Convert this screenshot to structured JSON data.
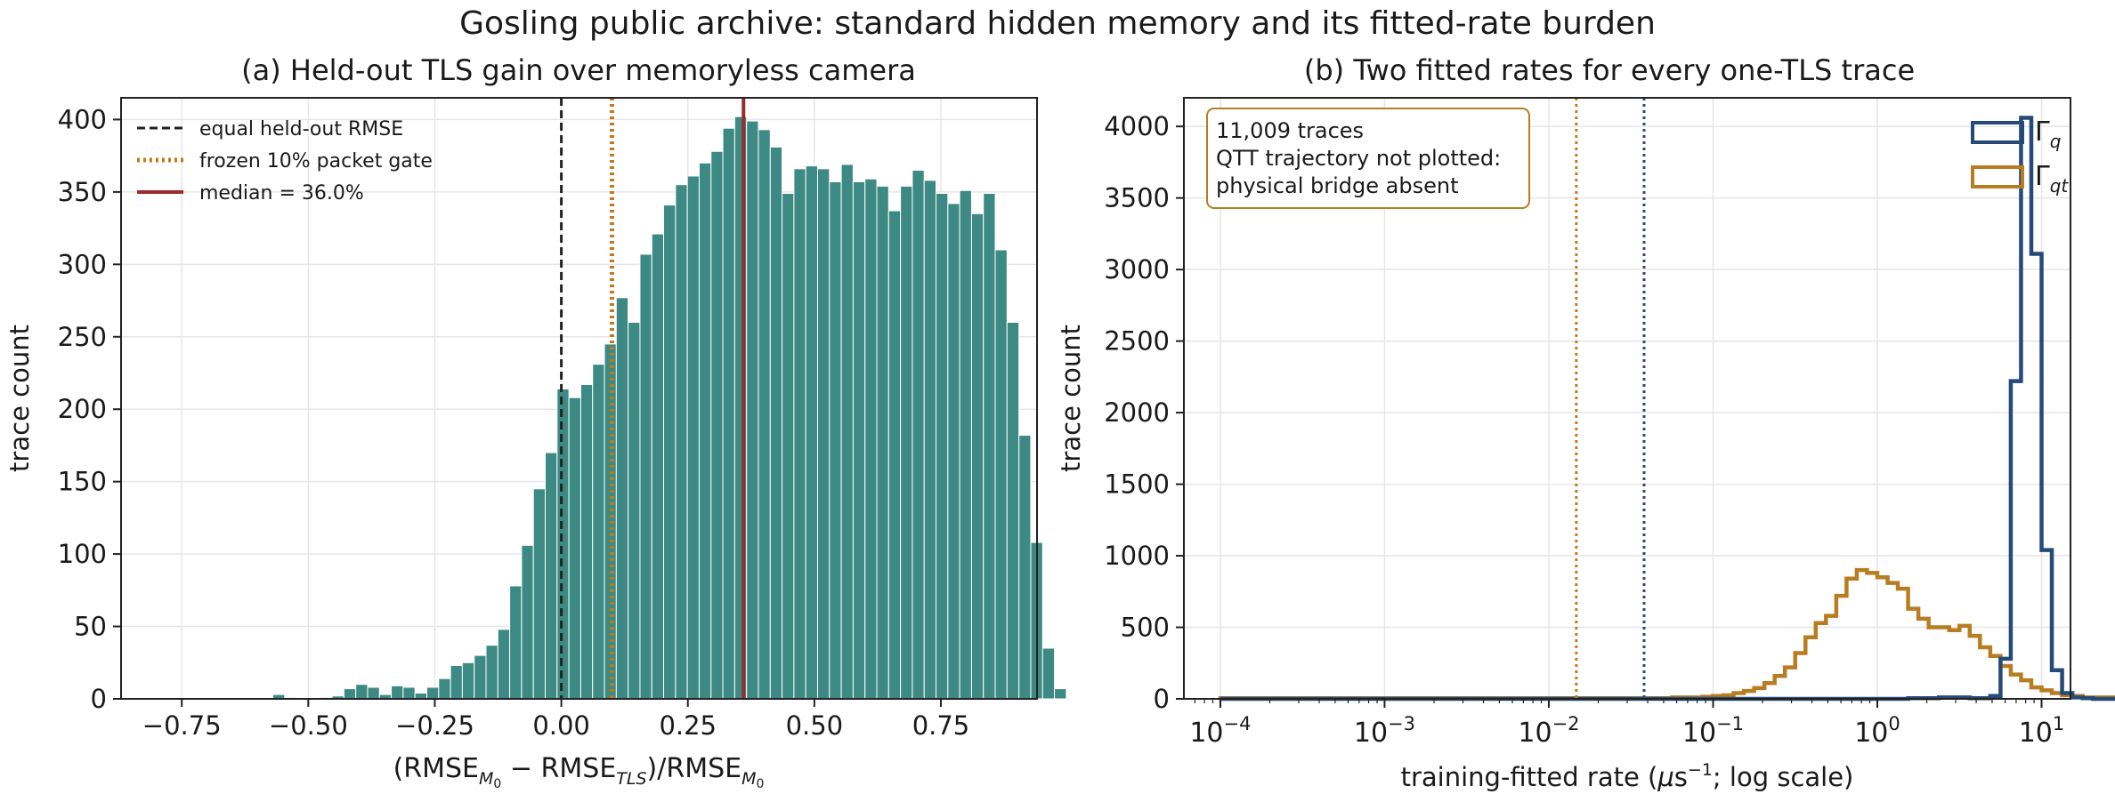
{
  "figure": {
    "suptitle": "Gosling public archive: standard hidden memory and its fitted-rate burden"
  },
  "colors": {
    "hist_fill": "#3d8a84",
    "hist_edge": "#ffffff",
    "equal_line": "#222222",
    "gate_line": "#c07a1c",
    "median_line": "#9e2a2b",
    "gamma_q": "#264a78",
    "gamma_qt": "#b87d22",
    "grid": "#e6e6e6"
  },
  "chart_data": [
    {
      "type": "bar",
      "title": "(a) Held-out TLS gain over memoryless camera",
      "xlabel": "(RMSE_M0 − RMSE_TLS)/RMSE_M0",
      "xlabel_parts": {
        "open": "(RMSE",
        "sub1": "M",
        "sub1b": "0",
        "minus": " − RMSE",
        "sub2": "TLS",
        "close": ")/RMSE",
        "sub3": "M",
        "sub3b": "0"
      },
      "ylabel": "trace count",
      "xlim": [
        -0.87,
        0.94
      ],
      "ylim": [
        0,
        415
      ],
      "xticks": [
        -0.75,
        -0.5,
        -0.25,
        0.0,
        0.25,
        0.5,
        0.75
      ],
      "xtick_labels": [
        "−0.75",
        "−0.50",
        "−0.25",
        "0.00",
        "0.25",
        "0.50",
        "0.75"
      ],
      "yticks": [
        0,
        50,
        100,
        150,
        200,
        250,
        300,
        350,
        400
      ],
      "ytick_labels": [
        "0",
        "50",
        "100",
        "150",
        "200",
        "250",
        "300",
        "350",
        "400"
      ],
      "grid": true,
      "legend_position": "top-left",
      "bin_start": -0.57,
      "bin_width": 0.0234,
      "values": [
        3,
        1,
        0,
        0,
        1,
        2,
        7,
        10,
        8,
        3,
        9,
        8,
        4,
        8,
        14,
        23,
        25,
        30,
        37,
        48,
        78,
        106,
        145,
        170,
        214,
        208,
        217,
        231,
        245,
        277,
        260,
        307,
        321,
        341,
        355,
        361,
        370,
        378,
        394,
        402,
        399,
        393,
        381,
        349,
        366,
        368,
        366,
        357,
        369,
        357,
        359,
        354,
        337,
        354,
        365,
        358,
        349,
        342,
        351,
        335,
        349,
        310,
        260,
        182,
        108,
        35,
        7
      ],
      "reference_lines": [
        {
          "name": "equal held-out RMSE",
          "x": 0.0,
          "style": "dashed"
        },
        {
          "name": "frozen 10% packet gate",
          "x": 0.1,
          "style": "dotted"
        },
        {
          "name": "median = 36.0%",
          "x": 0.36,
          "style": "solid"
        }
      ]
    },
    {
      "type": "line",
      "subtype": "step-histogram",
      "title": "(b) Two fitted rates for every one-TLS trace",
      "xlabel": "training-fitted rate (μs⁻¹; log scale)",
      "xlabel_parts": {
        "before": "training-fitted rate (",
        "mu": "μ",
        "s": "s",
        "exp": "−1",
        "after": "; log scale)"
      },
      "ylabel": "trace count",
      "xscale": "log",
      "xlim": [
        6e-05,
        15
      ],
      "ylim": [
        0,
        4200
      ],
      "xticks": [
        0.0001,
        0.001,
        0.01,
        0.1,
        1,
        10
      ],
      "xtick_labels": [
        {
          "base": "10",
          "exp": "−4"
        },
        {
          "base": "10",
          "exp": "−3"
        },
        {
          "base": "10",
          "exp": "−2"
        },
        {
          "base": "10",
          "exp": "−1"
        },
        {
          "base": "10",
          "exp": "0"
        },
        {
          "base": "10",
          "exp": "1"
        }
      ],
      "yticks": [
        0,
        500,
        1000,
        1500,
        2000,
        2500,
        3000,
        3500,
        4000
      ],
      "ytick_labels": [
        "0",
        "500",
        "1000",
        "1500",
        "2000",
        "2500",
        "3000",
        "3500",
        "4000"
      ],
      "grid": true,
      "legend_position": "top-right",
      "annotation": [
        "11,009 traces",
        "QTT trajectory not plotted:",
        "physical bridge absent"
      ],
      "bin_log_start": -4,
      "bin_log_width": 0.0625,
      "series": [
        {
          "name": "Γq",
          "name_base": "Γ",
          "name_sub": "q",
          "color_key": "gamma_q",
          "median": 0.038,
          "values": [
            0,
            0,
            0,
            0,
            0,
            0,
            0,
            0,
            0,
            0,
            0,
            0,
            0,
            0,
            0,
            0,
            0,
            0,
            0,
            0,
            0,
            0,
            0,
            0,
            0,
            0,
            0,
            0,
            0,
            0,
            0,
            0,
            0,
            0,
            0,
            0,
            0,
            0,
            0,
            0,
            0,
            0,
            0,
            0,
            0,
            0,
            0,
            0,
            0,
            0,
            0,
            0,
            0,
            0,
            0,
            0,
            0,
            0,
            0,
            0,
            0,
            0,
            0,
            0,
            0,
            0,
            0,
            5,
            5,
            5,
            10,
            10,
            10,
            5,
            5,
            20,
            280,
            2220,
            4060,
            3110,
            1040,
            200,
            40,
            10,
            5,
            0,
            0,
            0,
            0,
            0,
            0,
            0,
            0,
            0,
            0,
            0,
            0,
            0,
            0,
            0,
            0,
            0,
            0,
            0,
            5,
            10,
            5,
            0,
            0,
            0,
            0,
            0,
            0,
            0,
            0,
            0,
            0,
            0,
            0,
            0,
            0,
            0,
            0,
            0,
            0,
            0,
            0,
            0,
            0,
            0,
            0,
            0,
            0,
            0,
            0
          ]
        },
        {
          "name": "Γqt",
          "name_base": "Γ",
          "name_sub": "qt",
          "color_key": "gamma_qt",
          "median": 0.0147,
          "values": [
            5,
            5,
            5,
            5,
            5,
            5,
            5,
            5,
            5,
            5,
            5,
            5,
            5,
            5,
            5,
            5,
            5,
            5,
            5,
            5,
            5,
            5,
            5,
            5,
            5,
            5,
            5,
            5,
            5,
            5,
            5,
            5,
            5,
            5,
            5,
            5,
            5,
            5,
            5,
            5,
            5,
            5,
            5,
            5,
            10,
            10,
            10,
            15,
            20,
            25,
            40,
            55,
            75,
            110,
            160,
            220,
            320,
            430,
            530,
            580,
            720,
            840,
            900,
            880,
            850,
            810,
            770,
            630,
            560,
            500,
            500,
            480,
            510,
            440,
            360,
            300,
            230,
            170,
            130,
            80,
            60,
            40,
            25,
            20,
            10,
            10,
            10,
            5,
            5,
            5,
            5,
            5,
            5,
            5,
            5,
            5,
            5,
            5,
            5,
            5,
            5,
            5,
            5,
            5,
            5,
            5,
            5,
            5,
            5,
            5,
            5,
            5,
            5,
            5,
            5,
            5,
            5,
            5,
            5,
            5,
            5,
            5,
            5,
            5,
            5,
            5,
            5,
            5,
            5,
            5,
            5,
            5,
            5,
            5,
            5,
            5,
            5,
            5
          ]
        }
      ]
    }
  ]
}
